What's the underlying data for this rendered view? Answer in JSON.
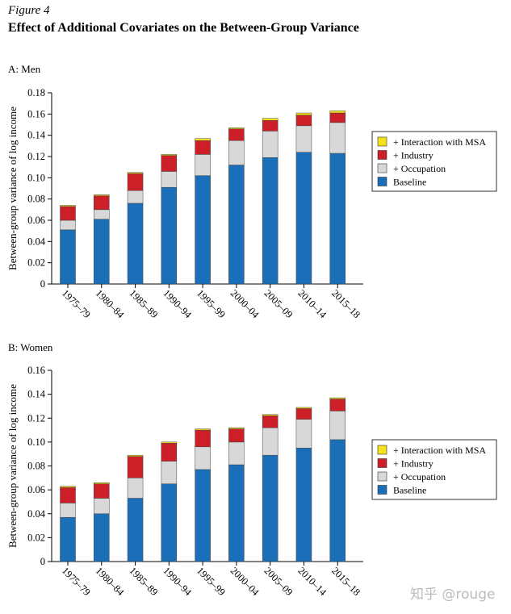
{
  "figure_label": "Figure 4",
  "figure_title": "Effect of Additional Covariates on the Between-Group Variance",
  "watermark": "知乎 @rouge",
  "colors": {
    "baseline": "#1a6fb8",
    "occupation": "#d8d8d8",
    "industry": "#cc1f27",
    "interaction": "#f5e21a"
  },
  "chart_data": [
    {
      "type": "bar",
      "stacked": true,
      "title": "A: Men",
      "ylabel": "Between-group variance of log income",
      "xlabel": "",
      "ylim": [
        0,
        0.18
      ],
      "yticks": [
        "0",
        "0.02",
        "0.04",
        "0.06",
        "0.08",
        "0.10",
        "0.12",
        "0.14",
        "0.16",
        "0.18"
      ],
      "categories": [
        "1975–79",
        "1980–84",
        "1985–89",
        "1990–94",
        "1995–99",
        "2000–04",
        "2005–09",
        "2010–14",
        "2015–18"
      ],
      "legend_position": "right",
      "series": [
        {
          "name": "Baseline",
          "key": "baseline",
          "values": [
            0.051,
            0.061,
            0.076,
            0.091,
            0.102,
            0.112,
            0.119,
            0.124,
            0.123
          ]
        },
        {
          "name": "+ Occupation",
          "key": "occupation",
          "values": [
            0.009,
            0.009,
            0.012,
            0.015,
            0.02,
            0.023,
            0.025,
            0.025,
            0.029
          ]
        },
        {
          "name": "+ Industry",
          "key": "industry",
          "values": [
            0.013,
            0.013,
            0.016,
            0.015,
            0.013,
            0.011,
            0.01,
            0.01,
            0.009
          ]
        },
        {
          "name": "+ Interaction with MSA",
          "key": "interaction",
          "values": [
            0.001,
            0.001,
            0.001,
            0.001,
            0.002,
            0.001,
            0.002,
            0.002,
            0.002
          ]
        }
      ]
    },
    {
      "type": "bar",
      "stacked": true,
      "title": "B: Women",
      "ylabel": "Between-group variance of log income",
      "xlabel": "",
      "ylim": [
        0,
        0.16
      ],
      "yticks": [
        "0",
        "0.02",
        "0.04",
        "0.06",
        "0.08",
        "0.10",
        "0.12",
        "0.14",
        "0.16"
      ],
      "categories": [
        "1975–79",
        "1980–84",
        "1985–89",
        "1990–94",
        "1995–99",
        "2000–04",
        "2005–09",
        "2010–14",
        "2015–18"
      ],
      "legend_position": "right",
      "series": [
        {
          "name": "Baseline",
          "key": "baseline",
          "values": [
            0.037,
            0.04,
            0.053,
            0.065,
            0.077,
            0.081,
            0.089,
            0.095,
            0.102
          ]
        },
        {
          "name": "+ Occupation",
          "key": "occupation",
          "values": [
            0.012,
            0.013,
            0.017,
            0.019,
            0.019,
            0.019,
            0.023,
            0.024,
            0.024
          ]
        },
        {
          "name": "+ Industry",
          "key": "industry",
          "values": [
            0.013,
            0.012,
            0.018,
            0.015,
            0.014,
            0.011,
            0.01,
            0.009,
            0.01
          ]
        },
        {
          "name": "+ Interaction with MSA",
          "key": "interaction",
          "values": [
            0.001,
            0.001,
            0.001,
            0.001,
            0.001,
            0.001,
            0.001,
            0.001,
            0.001
          ]
        }
      ]
    }
  ]
}
